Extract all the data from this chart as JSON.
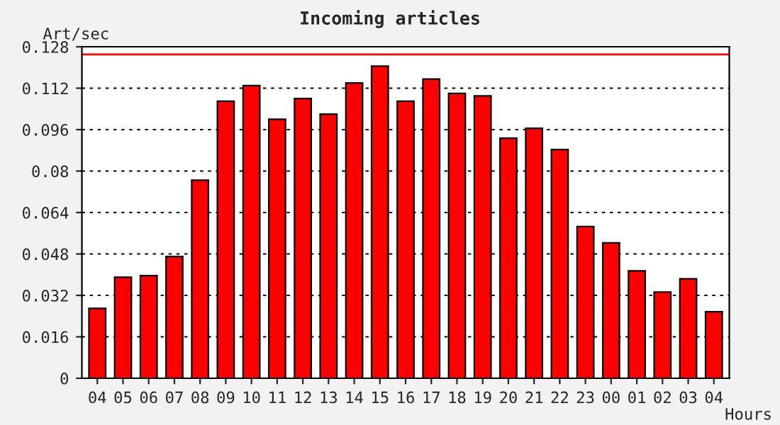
{
  "chart_data": {
    "type": "bar",
    "title": "Incoming articles",
    "xlabel": "Hours",
    "ylabel": "Art/sec",
    "categories": [
      "04",
      "05",
      "06",
      "07",
      "08",
      "09",
      "10",
      "11",
      "12",
      "13",
      "14",
      "15",
      "16",
      "17",
      "18",
      "19",
      "20",
      "21",
      "22",
      "23",
      "00",
      "01",
      "02",
      "03",
      "04"
    ],
    "values": [
      0.027,
      0.039,
      0.0396,
      0.047,
      0.0765,
      0.107,
      0.113,
      0.1,
      0.108,
      0.102,
      0.114,
      0.1205,
      0.107,
      0.1155,
      0.11,
      0.109,
      0.0927,
      0.0965,
      0.0883,
      0.0586,
      0.0523,
      0.0415,
      0.0333,
      0.0384,
      0.0257
    ],
    "color": "#ff0000",
    "ylim": [
      0,
      0.128
    ],
    "yticks": [
      0,
      0.016,
      0.032,
      0.048,
      0.064,
      0.08,
      0.096,
      0.112,
      0.128
    ],
    "grid": "y",
    "ref_lines": [
      {
        "axis": "y",
        "value": 0.125,
        "color": "#ff0000",
        "line_style": "solid"
      }
    ]
  }
}
